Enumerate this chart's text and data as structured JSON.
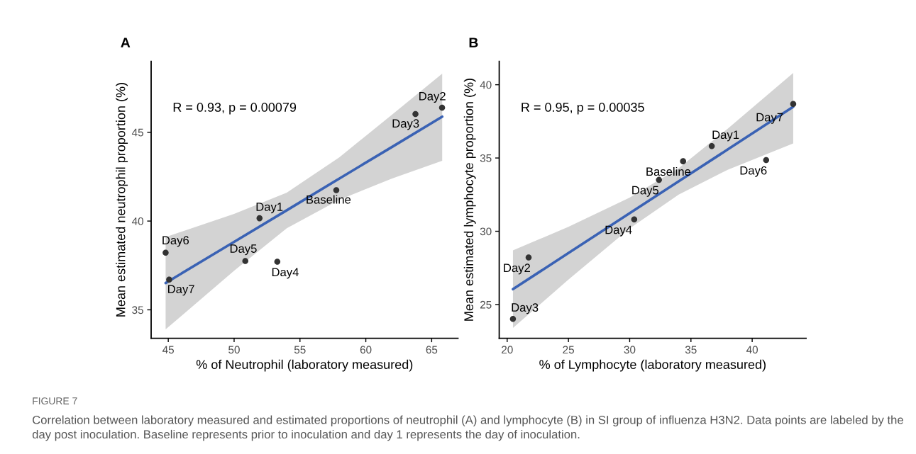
{
  "chart_data": [
    {
      "type": "scatter",
      "title": "A",
      "xlabel": "% of Neutrophil (laboratory measured)",
      "ylabel": "Mean estimated neutrophil proportion (%)",
      "xlim": [
        43.7,
        67.0
      ],
      "ylim": [
        33.4,
        49.0
      ],
      "xticks": [
        45,
        50,
        55,
        60,
        65
      ],
      "yticks": [
        35,
        40,
        45
      ],
      "grid": false,
      "legend": false,
      "series": [
        {
          "type": "line",
          "color": "#3a62b4",
          "x": [
            44.8,
            50,
            54,
            58,
            62,
            65.8
          ],
          "values": [
            36.51,
            38.83,
            40.61,
            42.4,
            44.18,
            45.88
          ],
          "lower": [
            33.9,
            37.2,
            39.6,
            41.2,
            42.4,
            43.4
          ],
          "upper": [
            39.1,
            40.4,
            41.6,
            43.6,
            46.0,
            48.3
          ]
        },
        {
          "type": "scatter",
          "marker": "circle",
          "color": "#333333",
          "x": [
            44.8,
            45.07,
            50.85,
            53.28,
            51.93,
            57.76,
            63.77,
            65.79
          ],
          "values": [
            38.22,
            36.7,
            37.75,
            37.71,
            40.16,
            41.74,
            46.03,
            46.39
          ]
        }
      ],
      "annotations": [
        "R = 0.93, p = 0.00079",
        {
          "text": "Day6",
          "x": 44.8,
          "y": 38.22
        },
        {
          "text": "Day7",
          "x": 45.07,
          "y": 36.7
        },
        {
          "text": "Day5",
          "x": 50.85,
          "y": 37.75
        },
        {
          "text": "Day4",
          "x": 53.28,
          "y": 37.71
        },
        {
          "text": "Day1",
          "x": 51.93,
          "y": 40.16
        },
        {
          "text": "Baseline",
          "x": 57.76,
          "y": 41.74
        },
        {
          "text": "Day3",
          "x": 63.77,
          "y": 46.03
        },
        {
          "text": "Day2",
          "x": 65.79,
          "y": 46.39
        },
        "FIGURE 7",
        "Correlation between laboratory measured and estimated proportions of neutrophil (A) and lymphocyte (B) in SI group of influenza H3N2. Data points are labeled by the day post inoculation. Baseline represents prior to inoculation and day 1 represents the day of inoculation."
      ]
    },
    {
      "type": "scatter",
      "title": "B",
      "xlabel": "% of Lymphocyte (laboratory measured)",
      "ylabel": "Mean estimated lymphocyte proportion (%)",
      "xlim": [
        19.35,
        44.4
      ],
      "ylim": [
        22.7,
        41.6
      ],
      "xticks": [
        20,
        25,
        30,
        35,
        40
      ],
      "yticks": [
        25,
        30,
        35,
        40
      ],
      "grid": false,
      "legend": false,
      "series": [
        {
          "type": "line",
          "color": "#3a62b4",
          "x": [
            20.47,
            25,
            30,
            34,
            38,
            43.35
          ],
          "values": [
            26.05,
            28.51,
            31.23,
            33.41,
            35.58,
            38.5
          ],
          "lower": [
            23.4,
            26.7,
            30.2,
            32.5,
            34.2,
            36.0
          ],
          "upper": [
            28.7,
            30.3,
            32.3,
            34.3,
            37.0,
            40.8
          ]
        },
        {
          "type": "scatter",
          "marker": "circle",
          "color": "#333333",
          "x": [
            20.47,
            21.75,
            30.37,
            32.39,
            34.36,
            36.7,
            41.14,
            43.35
          ],
          "values": [
            24.02,
            28.21,
            30.81,
            33.51,
            34.78,
            35.81,
            34.86,
            38.69
          ]
        }
      ],
      "annotations": [
        "R = 0.95, p = 0.00035",
        {
          "text": "Day3",
          "x": 20.47,
          "y": 24.02
        },
        {
          "text": "Day2",
          "x": 21.75,
          "y": 28.21
        },
        {
          "text": "Day4",
          "x": 30.37,
          "y": 30.81
        },
        {
          "text": "Day5",
          "x": 32.39,
          "y": 33.51
        },
        {
          "text": "Baseline",
          "x": 34.36,
          "y": 34.78
        },
        {
          "text": "Day1",
          "x": 36.7,
          "y": 35.81
        },
        {
          "text": "Day6",
          "x": 41.14,
          "y": 34.86
        },
        {
          "text": "Day7",
          "x": 43.35,
          "y": 38.69
        }
      ]
    }
  ]
}
